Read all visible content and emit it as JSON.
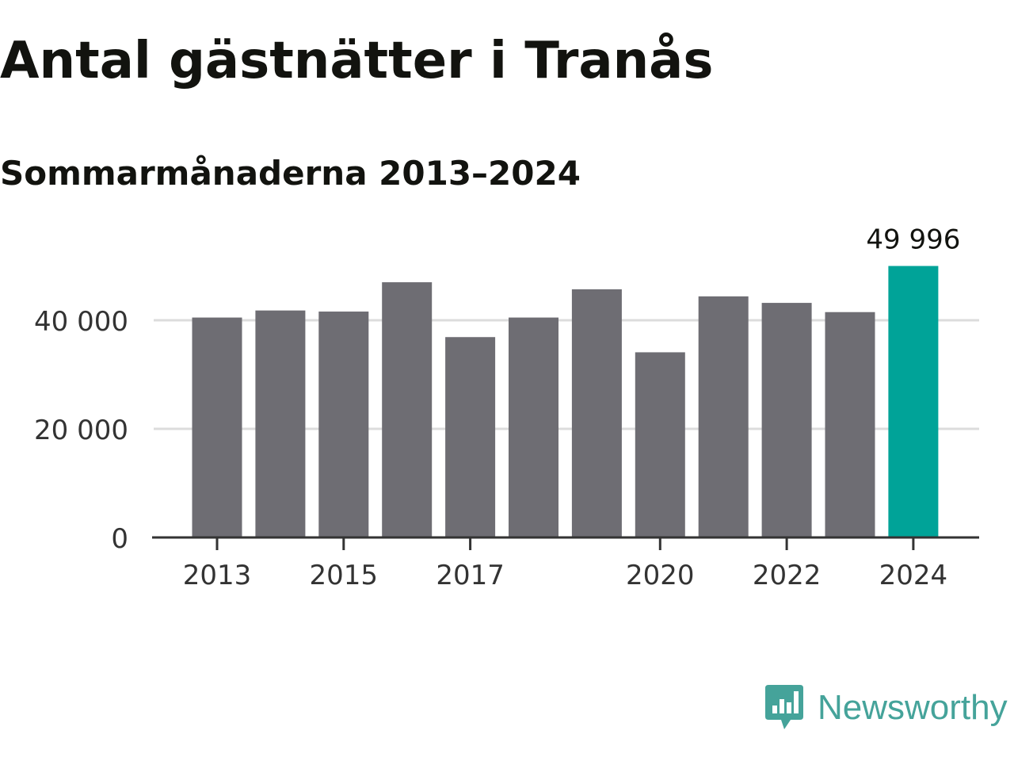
{
  "title": "Antal gästnätter i Tranås",
  "subtitle": "Sommarmånaderna 2013–2024",
  "logo_text": "Newsworthy",
  "colors": {
    "bar": "#6e6d73",
    "highlight": "#00a398",
    "grid": "#dcdcdc",
    "axis": "#333333",
    "text": "#333333",
    "logo": "#45a39a"
  },
  "chart_data": {
    "type": "bar",
    "categories": [
      "2013",
      "2014",
      "2015",
      "2016",
      "2017",
      "2018",
      "2019",
      "2020",
      "2021",
      "2022",
      "2023",
      "2024"
    ],
    "values": [
      40500,
      41800,
      41600,
      47000,
      36900,
      40500,
      45700,
      34100,
      44400,
      43200,
      41500,
      49996
    ],
    "highlight_index": 11,
    "data_labels": [
      {
        "index": 11,
        "text": "49 996"
      }
    ],
    "x_tick_labels": [
      "2013",
      "2015",
      "2017",
      "2020",
      "2022",
      "2024"
    ],
    "y_ticks": [
      0,
      20000,
      40000
    ],
    "y_tick_labels": [
      "0",
      "20 000",
      "40 000"
    ],
    "ylim": [
      0,
      50000
    ],
    "grid": true,
    "title": "Antal gästnätter i Tranås",
    "subtitle": "Sommarmånaderna 2013–2024",
    "xlabel": "",
    "ylabel": ""
  }
}
